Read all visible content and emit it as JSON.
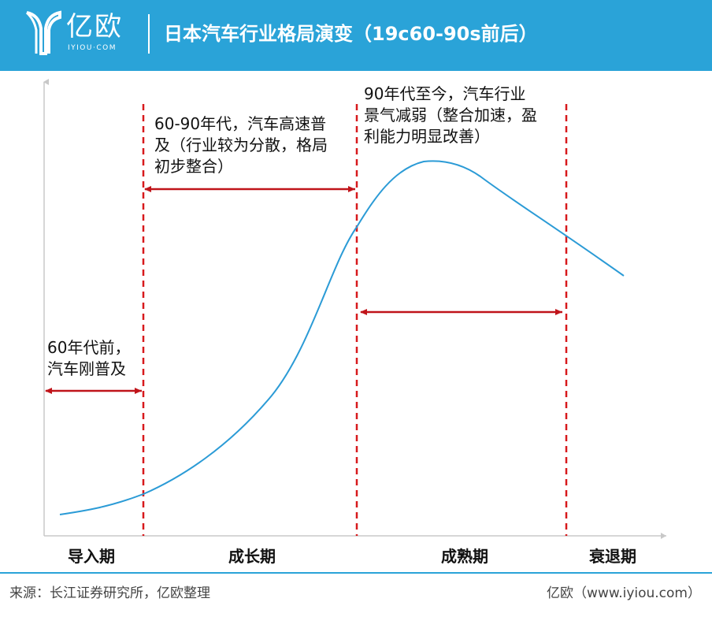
{
  "header": {
    "logo_text": "亿欧",
    "logo_sub": "IYIOU·COM",
    "title": "日本汽车行业格局演变（19c60-90s前后）"
  },
  "annotations": {
    "pre60": [
      "60年代前，",
      "汽车刚普及"
    ],
    "growth": [
      "60-90年代，汽车高速普",
      "及（行业较为分散，格局",
      "初步整合）"
    ],
    "mature": [
      "90年代至今，汽车行业",
      "景气减弱（整合加速，盈",
      "利能力明显改善）"
    ]
  },
  "stages": {
    "intro": "导入期",
    "growth": "成长期",
    "mature": "成熟期",
    "decline": "衰退期"
  },
  "footer": {
    "source": "来源：长江证券研究所，亿欧整理",
    "brand": "亿欧（www.iyiou.com）"
  },
  "colors": {
    "header_bg": "#2aa3d8",
    "curve": "#2b9bd6",
    "divider_dash": "#d7191c",
    "arrow": "#c0141a",
    "axis": "#c8c8c8"
  }
}
